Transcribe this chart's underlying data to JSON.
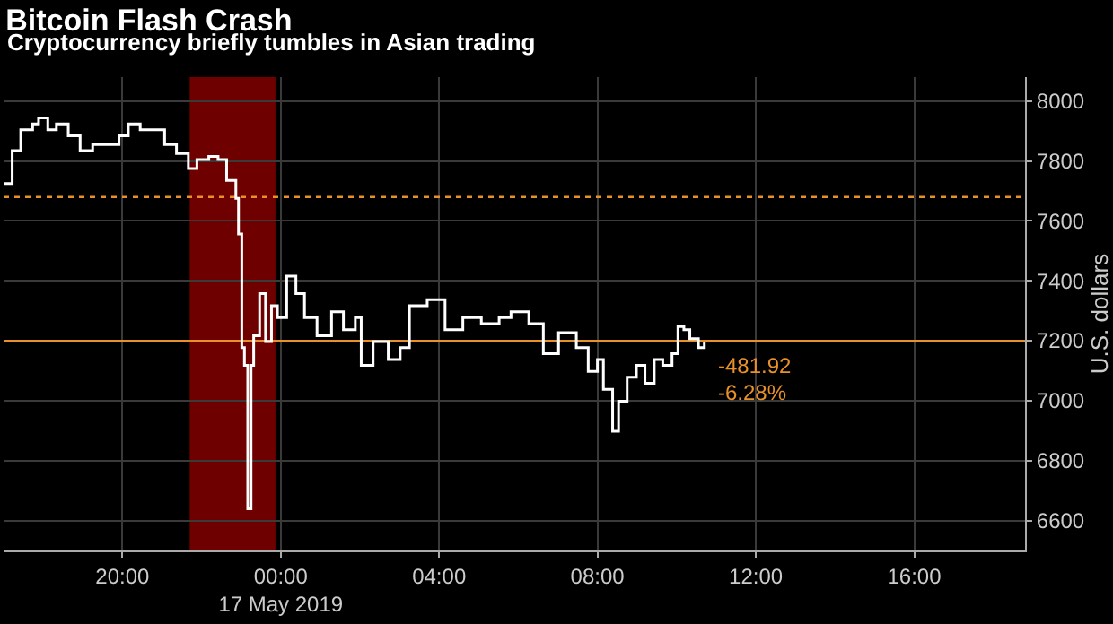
{
  "chart_data": {
    "type": "step",
    "title": "Bitcoin Flash Crash",
    "subtitle": "Cryptocurrency briefly tumbles in Asian trading",
    "ylabel": "U.S. dollars",
    "x": [
      "2019-05-16T17:00",
      "2019-05-16T17:13",
      "2019-05-16T17:26",
      "2019-05-16T17:44",
      "2019-05-16T17:53",
      "2019-05-16T18:07",
      "2019-05-16T18:20",
      "2019-05-16T18:38",
      "2019-05-16T18:56",
      "2019-05-16T19:15",
      "2019-05-16T19:37",
      "2019-05-16T19:55",
      "2019-05-16T20:09",
      "2019-05-16T20:27",
      "2019-05-16T20:45",
      "2019-05-16T21:04",
      "2019-05-16T21:22",
      "2019-05-16T21:40",
      "2019-05-16T21:53",
      "2019-05-16T22:11",
      "2019-05-16T22:25",
      "2019-05-16T22:38",
      "2019-05-16T22:52",
      "2019-05-16T22:56",
      "2019-05-16T23:01",
      "2019-05-16T23:05",
      "2019-05-16T23:10",
      "2019-05-16T23:15",
      "2019-05-16T23:19",
      "2019-05-16T23:28",
      "2019-05-16T23:37",
      "2019-05-16T23:46",
      "2019-05-16T23:55",
      "2019-05-17T00:09",
      "2019-05-17T00:23",
      "2019-05-17T00:36",
      "2019-05-17T00:55",
      "2019-05-17T01:17",
      "2019-05-17T01:35",
      "2019-05-17T01:53",
      "2019-05-17T02:02",
      "2019-05-17T02:20",
      "2019-05-17T02:43",
      "2019-05-17T03:01",
      "2019-05-17T03:15",
      "2019-05-17T03:42",
      "2019-05-17T04:09",
      "2019-05-17T04:36",
      "2019-05-17T05:04",
      "2019-05-17T05:31",
      "2019-05-17T05:49",
      "2019-05-17T06:16",
      "2019-05-17T06:38",
      "2019-05-17T07:01",
      "2019-05-17T07:28",
      "2019-05-17T07:33",
      "2019-05-17T07:46",
      "2019-05-17T08:00",
      "2019-05-17T08:09",
      "2019-05-17T08:23",
      "2019-05-17T08:32",
      "2019-05-17T08:45",
      "2019-05-17T08:59",
      "2019-05-17T09:12",
      "2019-05-17T09:26",
      "2019-05-17T09:39",
      "2019-05-17T09:53",
      "2019-05-17T10:02",
      "2019-05-17T10:11",
      "2019-05-17T10:20",
      "2019-05-17T10:33",
      "2019-05-17T10:42"
    ],
    "series": [
      {
        "color": "#ffffff",
        "values": [
          7725,
          7835,
          7904,
          7924,
          7944,
          7904,
          7924,
          7884,
          7835,
          7855,
          7855,
          7884,
          7924,
          7904,
          7904,
          7855,
          7825,
          7775,
          7805,
          7815,
          7805,
          7735,
          7675,
          7556,
          7177,
          7118,
          6639,
          7118,
          7217,
          7357,
          7197,
          7317,
          7277,
          7416,
          7357,
          7277,
          7217,
          7297,
          7237,
          7277,
          7118,
          7197,
          7137,
          7177,
          7317,
          7337,
          7237,
          7277,
          7257,
          7277,
          7297,
          7257,
          7157,
          7227,
          7177,
          7177,
          7098,
          7137,
          7038,
          6898,
          6998,
          7078,
          7118,
          7058,
          7137,
          7118,
          7157,
          7247,
          7237,
          7207,
          7177,
          7197
        ]
      }
    ],
    "xlim": [
      "2019-05-16T17:00",
      "2019-05-17T18:48"
    ],
    "xticks": [
      {
        "value": "2019-05-16T20:00",
        "label": "20:00"
      },
      {
        "value": "2019-05-17T00:00",
        "label": "00:00\n17 May 2019"
      },
      {
        "value": "2019-05-17T04:00",
        "label": "04:00"
      },
      {
        "value": "2019-05-17T08:00",
        "label": "08:00"
      },
      {
        "value": "2019-05-17T12:00",
        "label": "12:00"
      },
      {
        "value": "2019-05-17T16:00",
        "label": "16:00"
      }
    ],
    "ylim": [
      6500,
      8080
    ],
    "yticks": [
      6600,
      6800,
      7000,
      7200,
      7400,
      7600,
      7800,
      8000
    ],
    "grid": true,
    "ref_lines": [
      {
        "axis": "y",
        "value": 7680,
        "color": "#e8902a",
        "line_style": "dotted"
      },
      {
        "axis": "y",
        "value": 7200,
        "color": "#e8902a",
        "line_style": "solid"
      }
    ],
    "bands": [
      {
        "axis": "x",
        "from": "2019-05-16T21:42",
        "to": "2019-05-16T23:52",
        "color": "#8b0000"
      }
    ],
    "annotations": [
      "-481.92",
      "-6.28%"
    ]
  }
}
